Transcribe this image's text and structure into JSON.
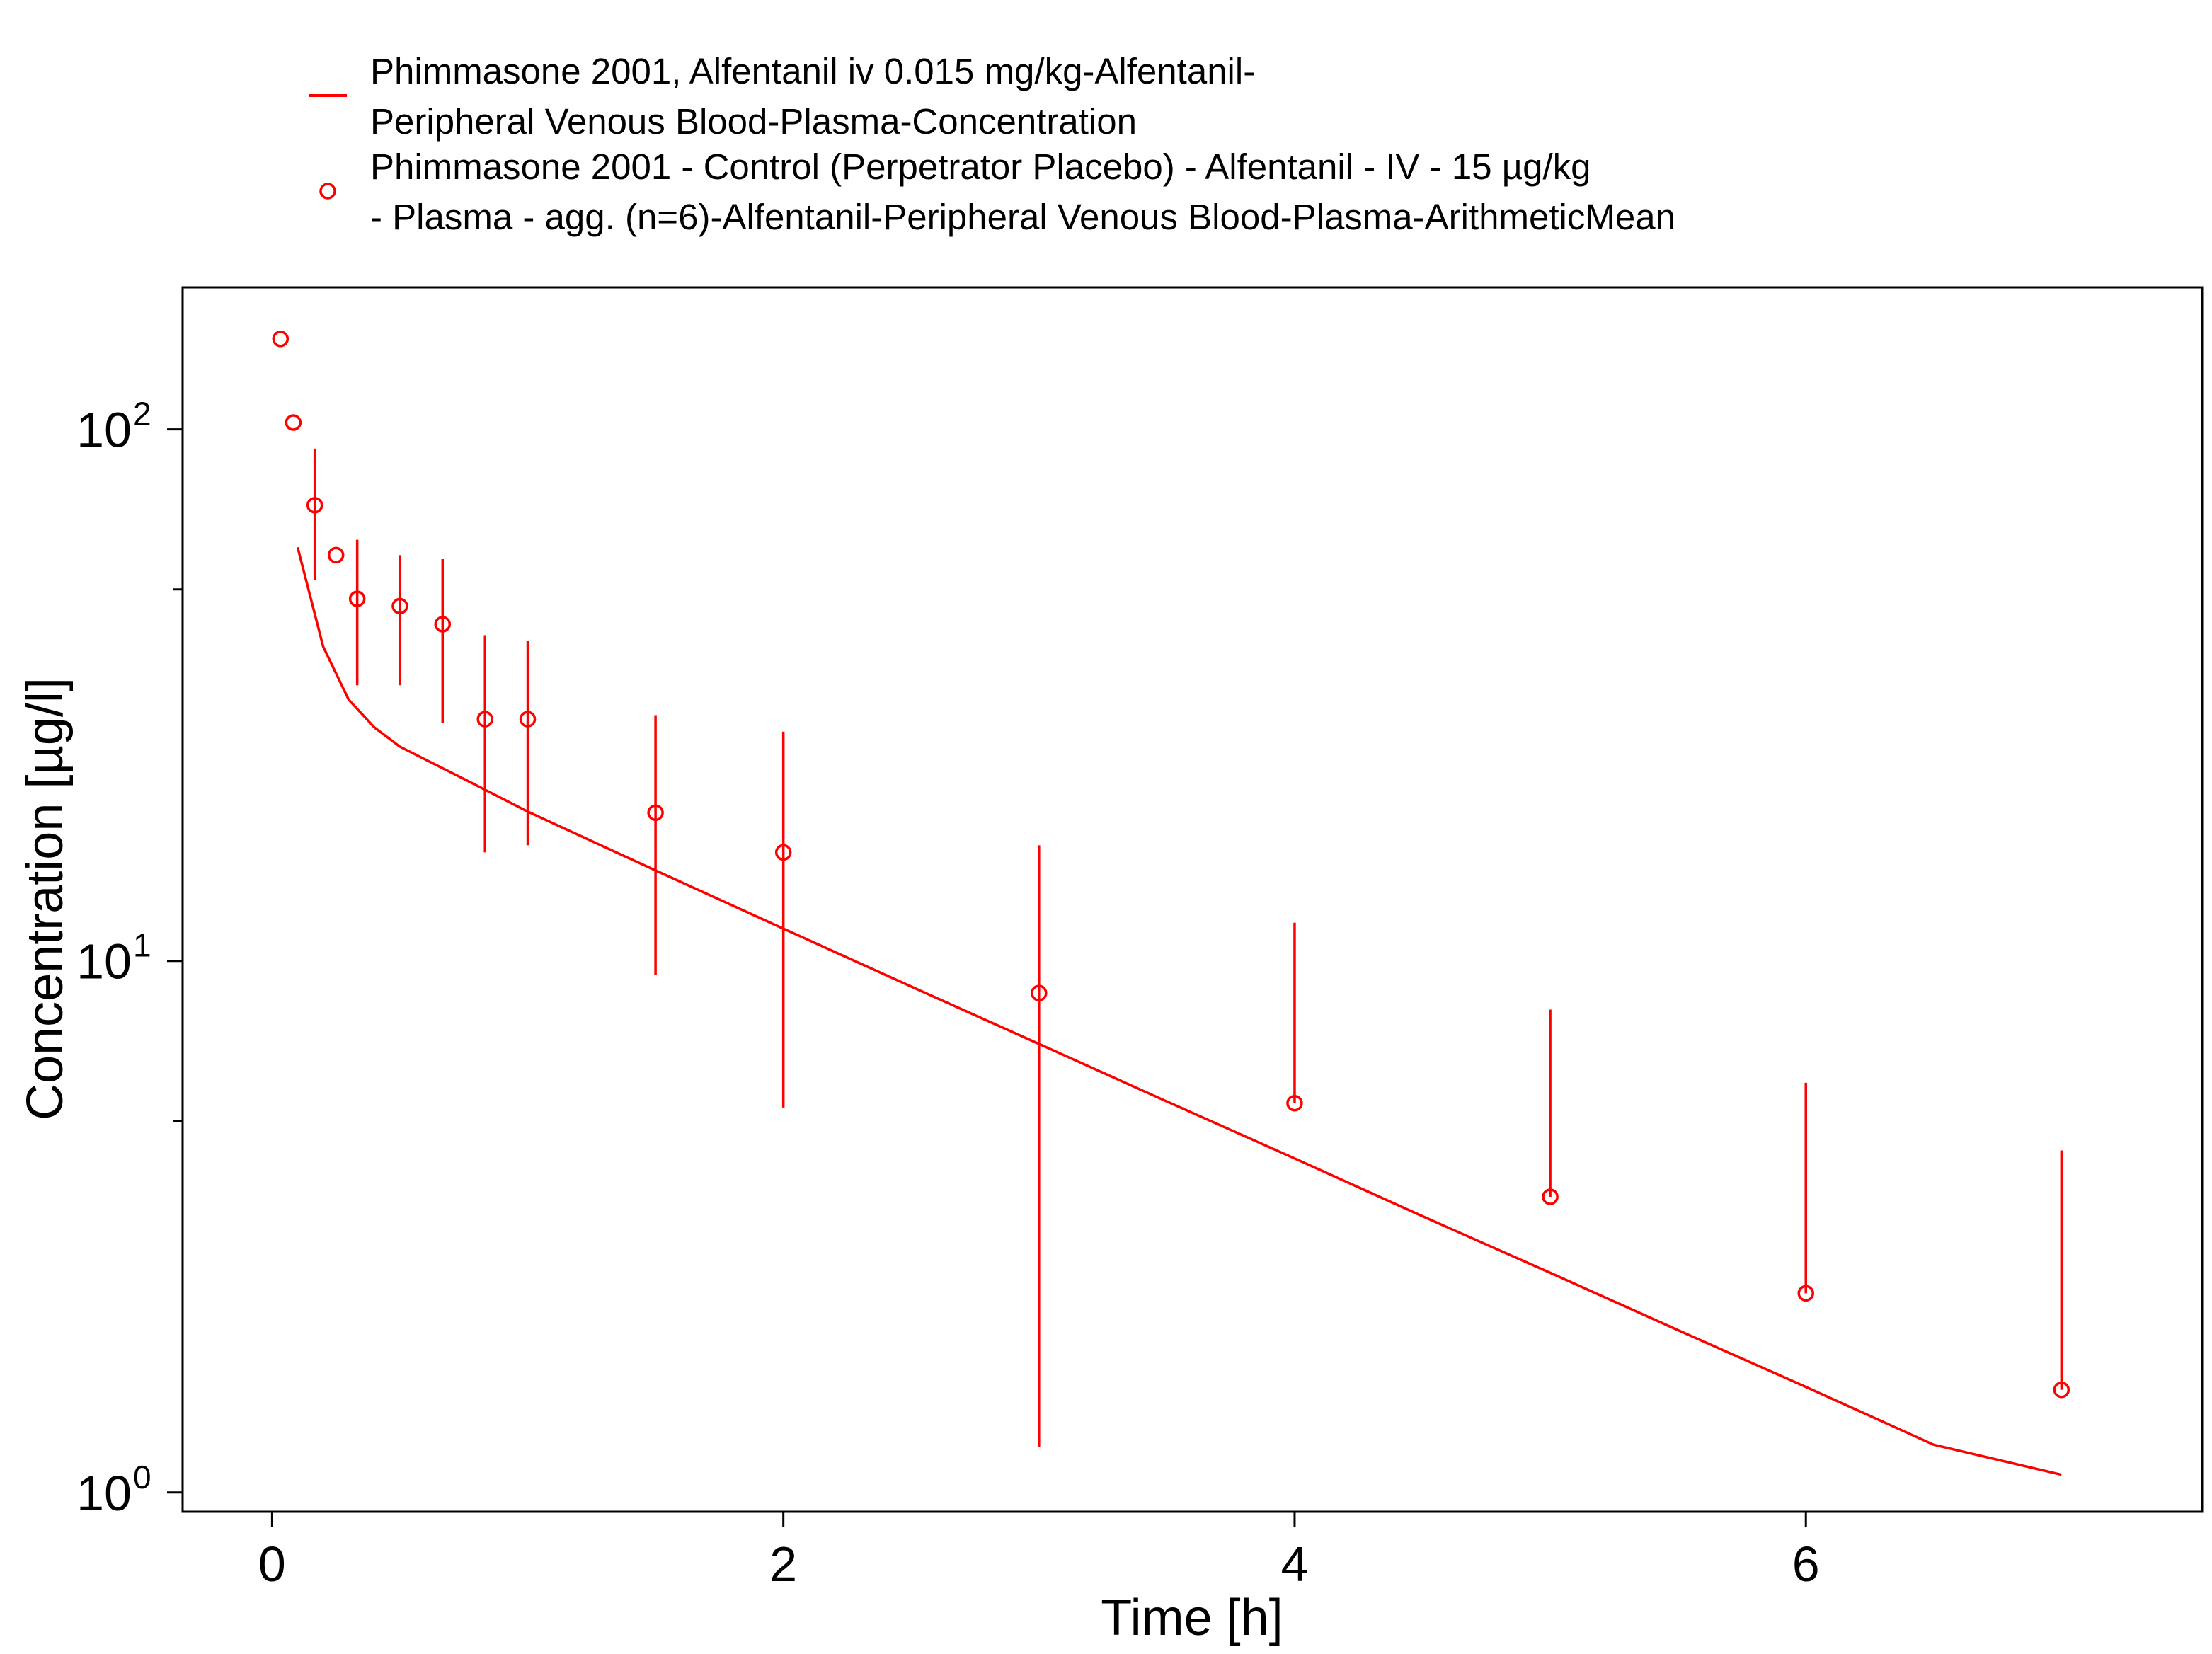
{
  "chart_data": {
    "type": "line",
    "xlabel": "Time [h]",
    "ylabel": "Concentration [µg/l]",
    "xlim": [
      -0.35,
      7.55
    ],
    "ylim": [
      0.92,
      185
    ],
    "yscale": "log",
    "grid": false,
    "legend_position": "top",
    "x_ticks": [
      0,
      2,
      4,
      6
    ],
    "y_ticks": [
      {
        "value": 1,
        "base": "10",
        "exp": "0"
      },
      {
        "value": 10,
        "base": "10",
        "exp": "1"
      },
      {
        "value": 100,
        "base": "10",
        "exp": "2"
      }
    ],
    "color": "#ff0000",
    "series": [
      {
        "name": "Phimmasone 2001, Alfentanil iv 0.015 mg/kg-Alfentanil-Peripheral Venous Blood-Plasma-Concentration",
        "legend_lines": [
          "Phimmasone 2001, Alfentanil iv 0.015 mg/kg-Alfentanil-",
          "Peripheral Venous Blood-Plasma-Concentration"
        ],
        "kind": "line",
        "x": [
          0.1,
          0.2,
          0.3,
          0.4,
          0.5,
          0.75,
          1,
          1.5,
          2,
          2.5,
          3,
          3.5,
          4,
          4.5,
          5,
          5.5,
          6,
          6.5,
          7
        ],
        "y": [
          60,
          39,
          31,
          27.5,
          25.3,
          22,
          19.1,
          14.8,
          11.5,
          8.95,
          6.98,
          5.44,
          4.25,
          3.31,
          2.59,
          2.02,
          1.58,
          1.23,
          1.08
        ]
      },
      {
        "name": "Phimmasone 2001 - Control (Perpetrator Placebo) - Alfentanil - IV - 15 µg/kg - Plasma - agg. (n=6)-Alfentanil-Peripheral Venous Blood-Plasma-ArithmeticMean",
        "legend_lines": [
          "Phimmasone 2001 - Control (Perpetrator Placebo) - Alfentanil - IV - 15 µg/kg",
          "- Plasma - agg. (n=6)-Alfentanil-Peripheral Venous Blood-Plasma-ArithmeticMean"
        ],
        "kind": "scatter",
        "x": [
          0.033,
          0.083,
          0.167,
          0.25,
          0.333,
          0.5,
          0.667,
          0.833,
          1,
          1.5,
          2,
          3,
          4,
          5,
          6,
          7
        ],
        "y": [
          148,
          103,
          72,
          58,
          48,
          46.5,
          43,
          28.5,
          28.5,
          19,
          16,
          8.7,
          5.4,
          3.6,
          2.37,
          1.56
        ],
        "y_lower": [
          null,
          null,
          52,
          null,
          33,
          33,
          28,
          16,
          16.5,
          9.4,
          5.3,
          1.22,
          5.4,
          3.6,
          2.37,
          1.56
        ],
        "y_upper": [
          null,
          null,
          92,
          null,
          62,
          58,
          57,
          41,
          40,
          29,
          27,
          16.5,
          11.8,
          8.1,
          5.9,
          4.4
        ]
      }
    ]
  }
}
